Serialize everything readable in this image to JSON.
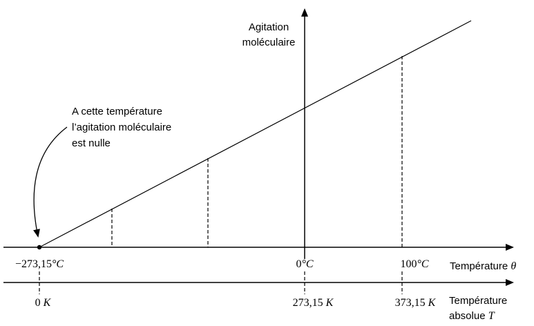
{
  "y_axis": {
    "label_line1": "Agitation",
    "label_line2": "moléculaire"
  },
  "annotation": {
    "line1": "A cette température",
    "line2": "l’agitation moléculaire",
    "line3": "est nulle"
  },
  "celsius_axis": {
    "label": "Température",
    "symbol": "θ",
    "ticks": [
      {
        "value": "−273,15",
        "unit": "°C"
      },
      {
        "value": "0",
        "unit": "°C"
      },
      {
        "value": "100",
        "unit": "°C"
      }
    ]
  },
  "kelvin_axis": {
    "label_line1": "Température",
    "label_line2_text": "absolue",
    "symbol": "T",
    "ticks": [
      {
        "value": "0",
        "unit": "K"
      },
      {
        "value": "273,15",
        "unit": "K"
      },
      {
        "value": "373,15",
        "unit": "K"
      }
    ]
  }
}
